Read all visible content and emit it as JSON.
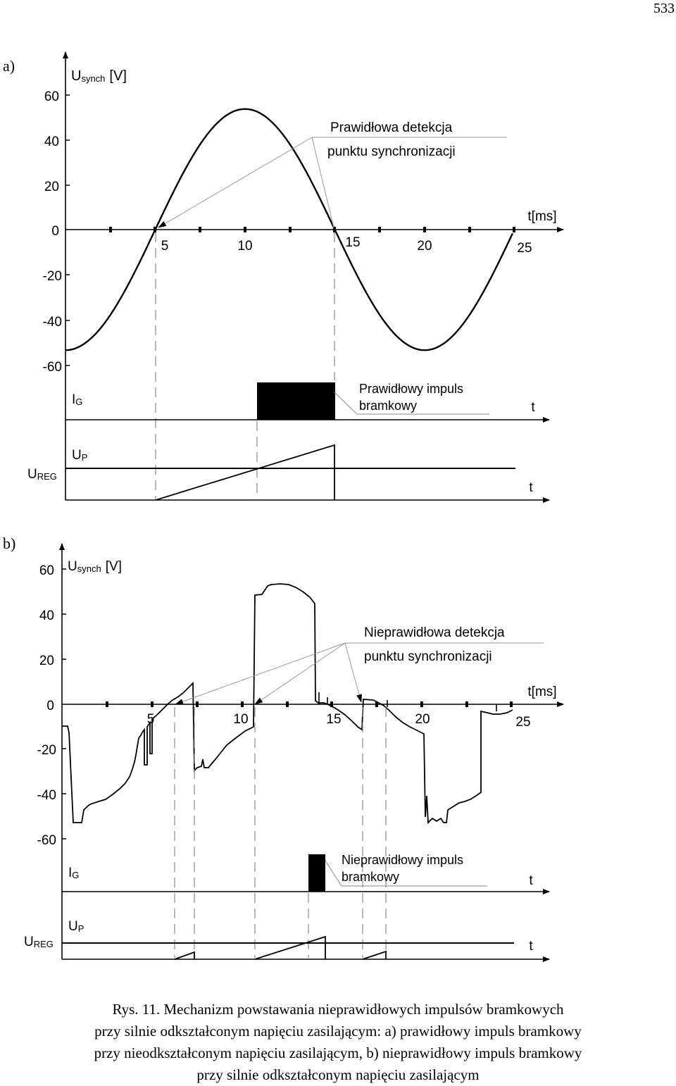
{
  "page_number": "533",
  "panel_a": {
    "label": "a)",
    "y_axis_label": "U",
    "y_axis_sub": "synch",
    "y_axis_unit": "[V]",
    "y_ticks": [
      "60",
      "40",
      "20",
      "0",
      "-20",
      "-40",
      "-60"
    ],
    "x_ticks": [
      "5",
      "10",
      "15",
      "20",
      "25"
    ],
    "x_axis_label": "t[ms]",
    "annotation_line1": "Prawidłowa detekcja",
    "annotation_line2": "punktu synchronizacji",
    "ig_label": "I",
    "ig_sub": "G",
    "ig_t_label": "t",
    "pulse_line1": "Prawidłowy impuls",
    "pulse_line2": "bramkowy",
    "up_label": "U",
    "up_sub": "P",
    "ureg_label": "U",
    "ureg_sub": "REG",
    "up_t_label": "t"
  },
  "panel_b": {
    "label": "b)",
    "y_axis_label": "U",
    "y_axis_sub": "synch",
    "y_axis_unit": "[V]",
    "y_ticks": [
      "60",
      "40",
      "20",
      "0",
      "-20",
      "-40",
      "-60"
    ],
    "x_ticks": [
      "5",
      "10",
      "15",
      "20",
      "25"
    ],
    "x_axis_label": "t[ms]",
    "annotation_line1": "Nieprawidłowa detekcja",
    "annotation_line2": "punktu synchronizacji",
    "ig_label": "I",
    "ig_sub": "G",
    "ig_t_label": "t",
    "pulse_line1": "Nieprawidłowy impuls",
    "pulse_line2": "bramkowy",
    "up_label": "U",
    "up_sub": "P",
    "ureg_label": "U",
    "ureg_sub": "REG",
    "up_t_label": "t"
  },
  "caption": {
    "line1": "Rys. 11. Mechanizm powstawania nieprawidłowych impulsów bramkowych",
    "line2": "przy silnie odkształconym napięciu zasilającym: a) prawidłowy impuls bramkowy",
    "line3": "przy nieodkształconym napięciu zasilającym, b) nieprawidłowy impuls bramkowy",
    "line4": "przy silnie odkształconym napięciu zasilającym"
  }
}
